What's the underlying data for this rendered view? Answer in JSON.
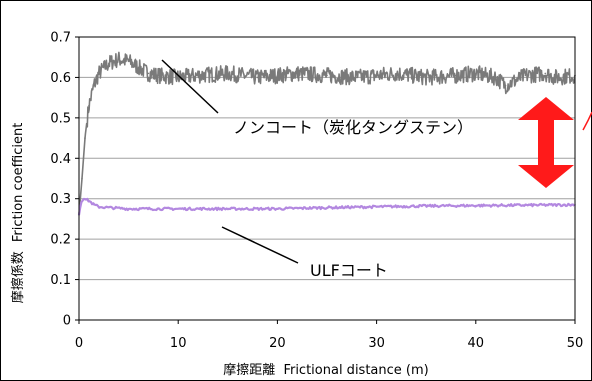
{
  "chart_data": {
    "type": "line",
    "title": "",
    "xlabel": "摩擦距離 Frictional distance (m)",
    "xlabel_jp": "摩擦距離",
    "xlabel_en": "Frictional distance (m)",
    "ylabel": "摩擦係数 Friction coefficient",
    "ylabel_jp": "摩擦係数",
    "ylabel_en": "Friction coefficient",
    "xlim": [
      0,
      50
    ],
    "ylim": [
      0,
      0.7
    ],
    "x_ticks": [
      0,
      10,
      20,
      30,
      40,
      50
    ],
    "x_tick_labels": [
      "0",
      "10",
      "20",
      "30",
      "40",
      "50"
    ],
    "y_ticks": [
      0,
      0.1,
      0.2,
      0.3,
      0.4,
      0.5,
      0.6,
      0.7
    ],
    "y_tick_labels": [
      "0",
      "0.1",
      "0.2",
      "0.3",
      "0.4",
      "0.5",
      "0.6",
      "0.7"
    ],
    "grid": "horizontal",
    "legend": "none",
    "series": [
      {
        "label": "ノンコート（炭化タングステン）",
        "color": "#7a7a7a",
        "x": [
          0,
          0.3,
          0.6,
          1.0,
          1.5,
          2,
          3,
          4,
          5,
          6,
          7,
          8,
          10,
          12,
          15,
          18,
          20,
          22,
          25,
          28,
          30,
          32,
          35,
          38,
          40,
          42,
          43,
          45,
          47,
          48,
          50
        ],
        "y": [
          0.26,
          0.35,
          0.45,
          0.53,
          0.58,
          0.61,
          0.635,
          0.645,
          0.64,
          0.625,
          0.61,
          0.605,
          0.6,
          0.605,
          0.61,
          0.6,
          0.605,
          0.61,
          0.605,
          0.6,
          0.605,
          0.61,
          0.6,
          0.605,
          0.61,
          0.6,
          0.58,
          0.605,
          0.61,
          0.6,
          0.605
        ]
      },
      {
        "label": "ULFコート",
        "color": "#b388e0",
        "x": [
          0,
          0.2,
          0.5,
          1.0,
          1.5,
          2,
          3,
          5,
          10,
          15,
          20,
          25,
          30,
          35,
          40,
          45,
          50
        ],
        "y": [
          0.26,
          0.29,
          0.3,
          0.295,
          0.285,
          0.28,
          0.278,
          0.275,
          0.275,
          0.275,
          0.275,
          0.278,
          0.28,
          0.282,
          0.283,
          0.284,
          0.285
        ]
      }
    ],
    "annotations": [
      {
        "text": "ノンコート（炭化タングステン）",
        "target_series": 0
      },
      {
        "text": "ULFコート",
        "target_series": 1
      }
    ],
    "arrow_color": "#ff1a1a"
  }
}
